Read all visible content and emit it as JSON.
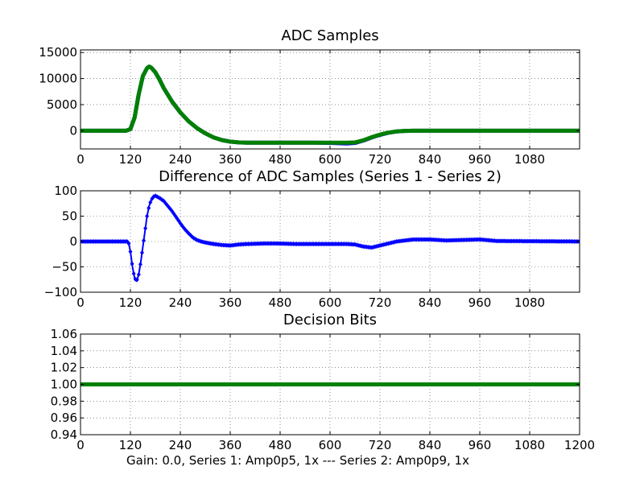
{
  "figure": {
    "xlabel": "Gain: 0.0, Series 1: Amp0p5, 1x --- Series 2: Amp0p9, 1x"
  },
  "chart_data": [
    {
      "type": "line",
      "title": "ADC Samples",
      "xlim": [
        0,
        1200
      ],
      "ylim": [
        -3500,
        15500
      ],
      "xticks": [
        0,
        120,
        240,
        360,
        480,
        600,
        720,
        840,
        960,
        1080
      ],
      "xtick_labels": [
        "0",
        "120",
        "240",
        "360",
        "480",
        "600",
        "720",
        "840",
        "960",
        "1080"
      ],
      "yticks": [
        0,
        5000,
        10000,
        15000
      ],
      "ytick_labels": [
        "0",
        "5000",
        "10000",
        "15000"
      ],
      "grid": true,
      "series": [
        {
          "name": "Series 1",
          "color": "#0000ff",
          "marker": "dot",
          "x": [
            0,
            110,
            120,
            130,
            140,
            150,
            160,
            165,
            170,
            180,
            190,
            200,
            220,
            240,
            260,
            280,
            300,
            320,
            340,
            360,
            380,
            400,
            480,
            560,
            600,
            620,
            640,
            660,
            680,
            700,
            720,
            740,
            760,
            780,
            800,
            840,
            1200
          ],
          "y": [
            0,
            0,
            300,
            2500,
            7000,
            10500,
            12000,
            12300,
            12100,
            11200,
            9800,
            8200,
            5600,
            3500,
            1800,
            500,
            -500,
            -1300,
            -1800,
            -2100,
            -2250,
            -2300,
            -2300,
            -2300,
            -2350,
            -2400,
            -2450,
            -2350,
            -1900,
            -1300,
            -800,
            -400,
            -150,
            -50,
            0,
            0,
            0
          ]
        },
        {
          "name": "Series 2",
          "color": "#008000",
          "marker": "dot",
          "x": [
            0,
            110,
            120,
            130,
            140,
            150,
            160,
            165,
            170,
            180,
            190,
            200,
            220,
            240,
            260,
            280,
            300,
            320,
            340,
            360,
            380,
            400,
            480,
            560,
            600,
            620,
            640,
            660,
            680,
            700,
            720,
            740,
            760,
            780,
            800,
            840,
            1200
          ],
          "y": [
            0,
            0,
            300,
            2500,
            7000,
            10500,
            12000,
            12300,
            12100,
            11200,
            9800,
            8200,
            5600,
            3500,
            1800,
            500,
            -500,
            -1300,
            -1800,
            -2100,
            -2250,
            -2300,
            -2300,
            -2300,
            -2300,
            -2300,
            -2300,
            -2250,
            -1850,
            -1250,
            -750,
            -380,
            -140,
            -40,
            0,
            0,
            0
          ]
        }
      ]
    },
    {
      "type": "line",
      "title": "Difference of ADC Samples (Series 1 - Series 2)",
      "xlim": [
        0,
        1200
      ],
      "ylim": [
        -100,
        100
      ],
      "xticks": [
        0,
        120,
        240,
        360,
        480,
        600,
        720,
        840,
        960,
        1080
      ],
      "xtick_labels": [
        "0",
        "120",
        "240",
        "360",
        "480",
        "600",
        "720",
        "840",
        "960",
        "1080"
      ],
      "yticks": [
        -100,
        -50,
        0,
        50,
        100
      ],
      "ytick_labels": [
        "−100",
        "−50",
        "0",
        "50",
        "100"
      ],
      "grid": true,
      "series": [
        {
          "name": "Series 1 - Series 2",
          "color": "#0000ff",
          "marker": "diamond",
          "x": [
            0,
            110,
            115,
            120,
            125,
            130,
            135,
            140,
            145,
            150,
            155,
            160,
            165,
            170,
            175,
            180,
            185,
            190,
            200,
            210,
            220,
            230,
            240,
            250,
            260,
            270,
            280,
            290,
            300,
            320,
            340,
            360,
            380,
            400,
            440,
            480,
            520,
            560,
            600,
            640,
            660,
            680,
            700,
            720,
            740,
            760,
            780,
            800,
            840,
            880,
            920,
            960,
            1000,
            1200
          ],
          "y": [
            0,
            0,
            0,
            -20,
            -50,
            -72,
            -78,
            -65,
            -40,
            -10,
            20,
            50,
            70,
            82,
            88,
            90,
            88,
            86,
            80,
            70,
            60,
            48,
            36,
            25,
            16,
            8,
            3,
            0,
            -2,
            -5,
            -7,
            -8,
            -6,
            -5,
            -4,
            -4,
            -5,
            -5,
            -5,
            -5,
            -6,
            -10,
            -12,
            -8,
            -4,
            0,
            2,
            4,
            4,
            2,
            3,
            4,
            1,
            0
          ]
        }
      ]
    },
    {
      "type": "line",
      "title": "Decision Bits",
      "xlim": [
        0,
        1200
      ],
      "ylim": [
        0.94,
        1.06
      ],
      "xticks": [
        0,
        120,
        240,
        360,
        480,
        600,
        720,
        840,
        960,
        1080,
        1200
      ],
      "xtick_labels": [
        "0",
        "120",
        "240",
        "360",
        "480",
        "600",
        "720",
        "840",
        "960",
        "1080",
        "1200"
      ],
      "yticks": [
        0.94,
        0.96,
        0.98,
        1.0,
        1.02,
        1.04,
        1.06
      ],
      "ytick_labels": [
        "0.94",
        "0.96",
        "0.98",
        "1.00",
        "1.02",
        "1.04",
        "1.06"
      ],
      "grid": true,
      "series": [
        {
          "name": "Decision Bits",
          "color": "#008000",
          "marker": "none",
          "x": [
            0,
            1200
          ],
          "y": [
            1.0,
            1.0
          ]
        }
      ]
    }
  ]
}
